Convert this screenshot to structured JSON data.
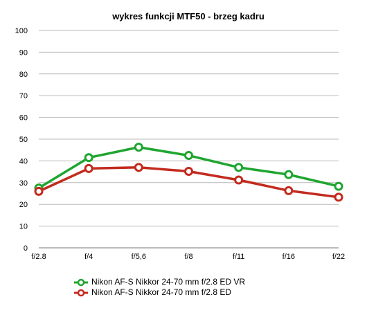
{
  "chart_data": {
    "type": "line",
    "title": "wykres funkcji MTF50 - brzeg kadru",
    "xlabel": "",
    "ylabel": "",
    "categories": [
      "f/2.8",
      "f/4",
      "f/5,6",
      "f/8",
      "f/11",
      "f/16",
      "f/22"
    ],
    "ylim": [
      0,
      100
    ],
    "yticks": [
      0,
      10,
      20,
      30,
      40,
      50,
      60,
      70,
      80,
      90,
      100
    ],
    "grid": true,
    "legend_position": "bottom",
    "series": [
      {
        "name": "Nikon AF-S Nikkor 24-70 mm f/2.8 ED VR",
        "color": "#1fa530",
        "marker": "open-circle",
        "values": [
          27.5,
          41.5,
          46.3,
          42.5,
          37,
          33.7,
          28.3
        ]
      },
      {
        "name": "Nikon AF-S Nikkor 24-70 mm f/2.8 ED",
        "color": "#c32a1e",
        "marker": "open-circle",
        "values": [
          26,
          36.5,
          37,
          35.2,
          31.2,
          26.3,
          23.3
        ]
      }
    ]
  }
}
